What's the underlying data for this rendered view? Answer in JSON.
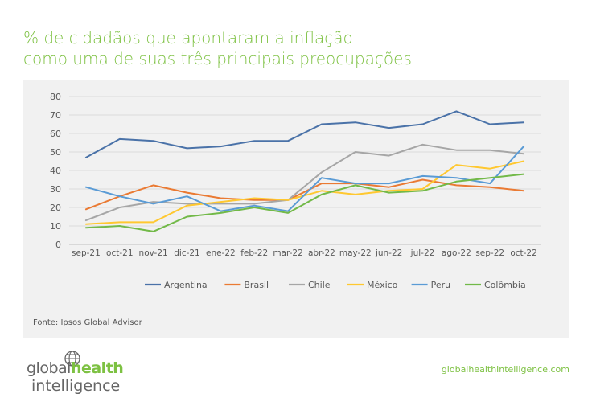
{
  "header": {
    "title_line1": "% de cidadãos que apontaram a inflação",
    "title_line2": "como uma de suas três principais preocupações"
  },
  "source": "Fonte: Ipsos Global Advisor",
  "footer": {
    "logo_part1": "global",
    "logo_part2": "health",
    "logo_part3": "intelligence",
    "website": "globalhealthintelligence.com"
  },
  "colors": {
    "accent": "#7dc142",
    "panel": "#f1f1f1"
  },
  "chart_data": {
    "type": "line",
    "title": "% de cidadãos que apontaram a inflação como uma de suas três principais preocupações",
    "xlabel": "",
    "ylabel": "",
    "ylim": [
      0,
      80
    ],
    "yticks": [
      0,
      10,
      20,
      30,
      40,
      50,
      60,
      70,
      80
    ],
    "grid": true,
    "legend_position": "bottom",
    "categories": [
      "sep-21",
      "oct-21",
      "nov-21",
      "dic-21",
      "ene-22",
      "feb-22",
      "mar-22",
      "abr-22",
      "may-22",
      "jun-22",
      "jul-22",
      "ago-22",
      "sep-22",
      "oct-22"
    ],
    "series": [
      {
        "name": "Argentina",
        "color": "#4a72a8",
        "values": [
          47,
          57,
          56,
          52,
          53,
          56,
          56,
          65,
          66,
          63,
          65,
          72,
          65,
          66
        ]
      },
      {
        "name": "Brasil",
        "color": "#ea7a33",
        "values": [
          19,
          26,
          32,
          28,
          25,
          24,
          24,
          33,
          33,
          31,
          35,
          32,
          31,
          29
        ]
      },
      {
        "name": "Chile",
        "color": "#a6a6a6",
        "values": [
          13,
          20,
          23,
          22,
          22,
          22,
          24,
          39,
          50,
          48,
          54,
          51,
          51,
          49
        ]
      },
      {
        "name": "México",
        "color": "#ffc830",
        "values": [
          11,
          12,
          12,
          21,
          23,
          25,
          24,
          29,
          27,
          29,
          30,
          43,
          41,
          45
        ]
      },
      {
        "name": "Peru",
        "color": "#5a9bd5",
        "values": [
          31,
          26,
          22,
          26,
          18,
          21,
          18,
          36,
          33,
          33,
          37,
          36,
          33,
          53
        ]
      },
      {
        "name": "Colômbia",
        "color": "#72b948",
        "values": [
          9,
          10,
          7,
          15,
          17,
          20,
          17,
          27,
          32,
          28,
          29,
          34,
          36,
          38
        ]
      }
    ]
  }
}
